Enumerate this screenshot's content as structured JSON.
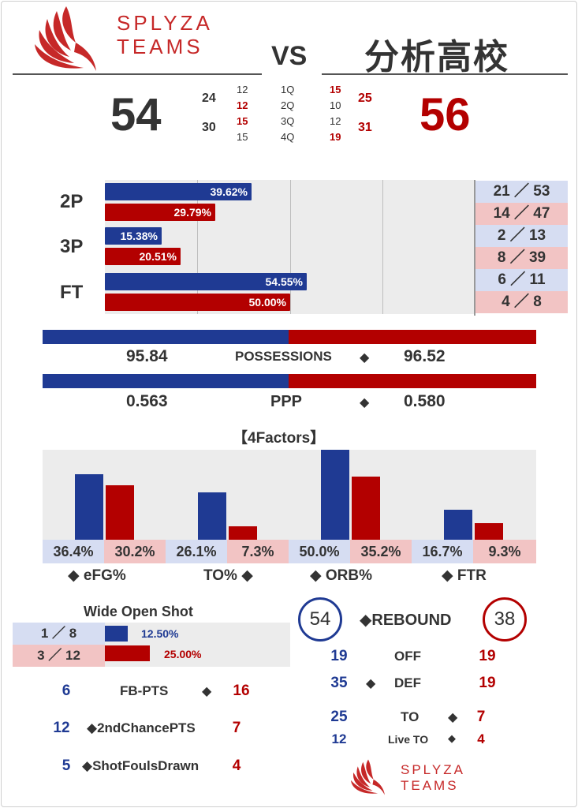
{
  "header": {
    "brand_line1": "SPLYZA",
    "brand_line2": "TEAMS",
    "vs": "VS",
    "opponent": "分析高校"
  },
  "score": {
    "home_total": "54",
    "away_total": "56",
    "home_half": [
      "24",
      "30"
    ],
    "away_half": [
      "25",
      "31"
    ],
    "quarters": [
      {
        "label": "1Q",
        "home": "12",
        "away": "15"
      },
      {
        "label": "2Q",
        "home": "12",
        "away": "10"
      },
      {
        "label": "3Q",
        "home": "15",
        "away": "12"
      },
      {
        "label": "4Q",
        "home": "15",
        "away": "19"
      }
    ]
  },
  "colors": {
    "home": "#1f3a93",
    "away": "#b30000",
    "home_light": "#d6ddf2",
    "away_light": "#f2c4c4",
    "brand": "#c62828"
  },
  "chart_data": [
    {
      "type": "bar",
      "orientation": "horizontal",
      "categories": [
        "2P",
        "3P",
        "FT"
      ],
      "series": [
        {
          "values": [
            39.62,
            15.38,
            54.55
          ],
          "labels": [
            "39.62%",
            "15.38%",
            "54.55%"
          ],
          "made_att": [
            "21 ／ 53",
            "2 ／ 13",
            "6 ／ 11"
          ]
        },
        {
          "values": [
            29.79,
            20.51,
            50.0
          ],
          "labels": [
            "29.79%",
            "20.51%",
            "50.00%"
          ],
          "made_att": [
            "14 ／ 47",
            "8 ／ 39",
            "4 ／ 8"
          ]
        }
      ],
      "xlim": [
        0,
        100
      ],
      "grid": true
    },
    {
      "type": "bar",
      "title": "【4Factors】",
      "categories": [
        "◆ eFG%",
        "TO% ◆",
        "◆ ORB%",
        "◆ FTR"
      ],
      "series": [
        {
          "values": [
            36.4,
            26.1,
            50.0,
            16.7
          ],
          "labels": [
            "36.4%",
            "26.1%",
            "50.0%",
            "16.7%"
          ]
        },
        {
          "values": [
            30.2,
            7.3,
            35.2,
            9.3
          ],
          "labels": [
            "30.2%",
            "7.3%",
            "35.2%",
            "9.3%"
          ]
        }
      ]
    },
    {
      "type": "bar",
      "orientation": "horizontal",
      "title": "Wide Open Shot",
      "series": [
        {
          "values": [
            12.5
          ],
          "labels": [
            "12.50%"
          ],
          "made_att": [
            "1 ／ 8"
          ]
        },
        {
          "values": [
            25.0
          ],
          "labels": [
            "25.00%"
          ],
          "made_att": [
            "3 ／ 12"
          ]
        }
      ]
    }
  ],
  "possessions": {
    "home": "95.84",
    "away": "96.52",
    "label": "POSSESSIONS",
    "home_share": 0.4982
  },
  "ppp": {
    "home": "0.563",
    "away": "0.580",
    "label": "PPP",
    "home_share": 0.4982
  },
  "diamond": "◆",
  "extras": [
    {
      "home": "6",
      "label": "FB-PTS",
      "away": "16"
    },
    {
      "home": "12",
      "label": "◆2ndChancePTS",
      "away": "7"
    },
    {
      "home": "5",
      "label": "◆ShotFoulsDrawn",
      "away": "4"
    }
  ],
  "rebound": {
    "home_total": "54",
    "away_total": "38",
    "label": "◆REBOUND",
    "rows": [
      {
        "home": "19",
        "label": "OFF",
        "away": "19"
      },
      {
        "home": "35",
        "label": "DEF",
        "away": "19"
      },
      {
        "home": "25",
        "label": "TO",
        "away": "7"
      },
      {
        "home": "12",
        "label": "Live TO",
        "away": "4"
      }
    ]
  }
}
